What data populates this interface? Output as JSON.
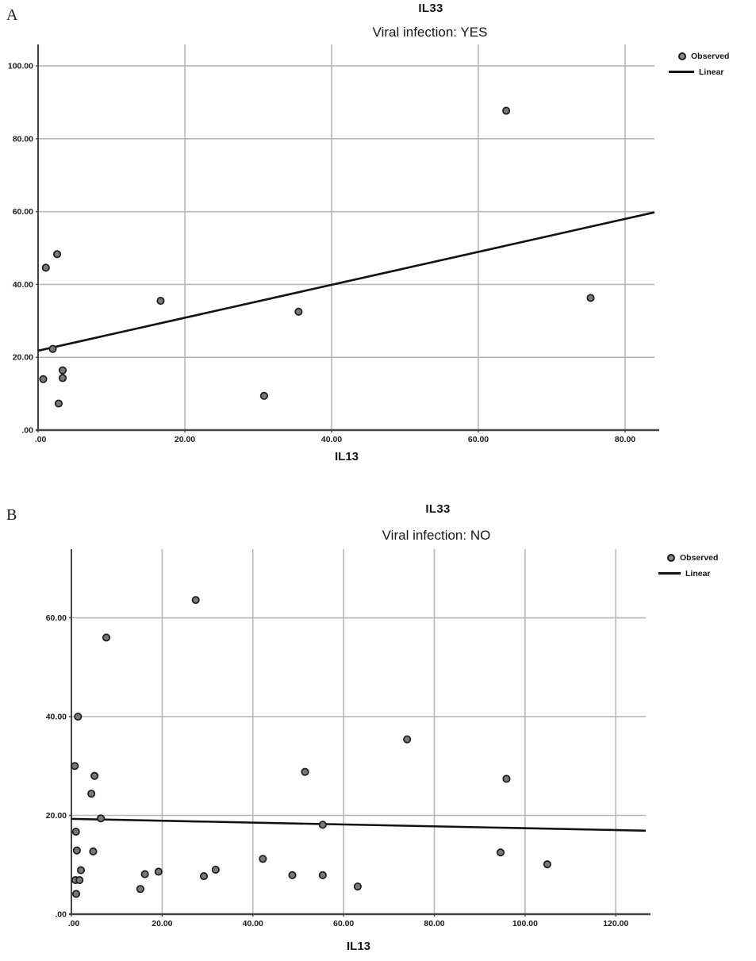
{
  "colors": {
    "background": "#ffffff",
    "point_fill": "#787878",
    "point_stroke": "#1c1c1c",
    "fit_line": "#121212",
    "gridline": "#b8b8b8",
    "axis": "#454545",
    "text": "#1a1a1a"
  },
  "chart_data": [
    {
      "type": "scatter",
      "panel_label": "A",
      "title": "IL33",
      "subtitle": "Viral infection: YES",
      "xlabel": "IL13",
      "ylabel": "",
      "legend": [
        "Observed",
        "Linear"
      ],
      "legend_position": "top-right",
      "grid": true,
      "xlim": [
        0,
        84
      ],
      "ylim": [
        0,
        105.9
      ],
      "x_ticks": [
        0,
        20,
        40,
        60,
        80
      ],
      "x_tick_labels": [
        ".00",
        "20.00",
        "40.00",
        "60.00",
        "80.00"
      ],
      "y_ticks": [
        0,
        20,
        40,
        60,
        80,
        100
      ],
      "y_tick_labels": [
        ".00",
        "20.00",
        "40.00",
        "60.00",
        "80.00",
        "100.00"
      ],
      "points": [
        [
          0.7,
          14.0
        ],
        [
          1.05,
          44.6
        ],
        [
          2.0,
          22.3
        ],
        [
          2.6,
          48.3
        ],
        [
          2.8,
          7.3
        ],
        [
          3.35,
          16.4
        ],
        [
          3.35,
          14.3
        ],
        [
          16.7,
          35.5
        ],
        [
          30.8,
          9.4
        ],
        [
          35.5,
          32.5
        ],
        [
          63.8,
          87.7
        ],
        [
          75.3,
          36.3
        ]
      ],
      "linear_fit": {
        "x": [
          0,
          84
        ],
        "y": [
          21.8,
          59.8
        ]
      }
    },
    {
      "type": "scatter",
      "panel_label": "B",
      "title": "IL33",
      "subtitle": "Viral infection: NO",
      "xlabel": "IL13",
      "ylabel": "",
      "legend": [
        "Observed",
        "Linear"
      ],
      "legend_position": "top-right",
      "grid": true,
      "xlim": [
        0,
        126.6
      ],
      "ylim": [
        0,
        73.9
      ],
      "x_ticks": [
        0,
        20,
        40,
        60,
        80,
        100,
        120
      ],
      "x_tick_labels": [
        ".00",
        "20.00",
        "40.00",
        "60.00",
        "80.00",
        "100.00",
        "120.00"
      ],
      "y_ticks": [
        0,
        20,
        40,
        60
      ],
      "y_tick_labels": [
        ".00",
        "20.00",
        "40.00",
        "60.00"
      ],
      "points": [
        [
          0.75,
          30.0
        ],
        [
          0.9,
          6.9
        ],
        [
          1.0,
          16.7
        ],
        [
          1.05,
          4.1
        ],
        [
          1.2,
          12.9
        ],
        [
          1.45,
          40.0
        ],
        [
          1.8,
          6.9
        ],
        [
          2.1,
          8.9
        ],
        [
          4.4,
          24.4
        ],
        [
          4.8,
          12.7
        ],
        [
          5.1,
          28.0
        ],
        [
          6.5,
          19.4
        ],
        [
          7.7,
          56.0
        ],
        [
          15.2,
          5.1
        ],
        [
          16.2,
          8.1
        ],
        [
          19.2,
          8.6
        ],
        [
          27.4,
          63.6
        ],
        [
          29.2,
          7.7
        ],
        [
          31.8,
          9.0
        ],
        [
          42.2,
          11.2
        ],
        [
          48.7,
          7.9
        ],
        [
          51.5,
          28.8
        ],
        [
          55.4,
          18.1
        ],
        [
          55.4,
          7.9
        ],
        [
          63.1,
          5.6
        ],
        [
          74.0,
          35.4
        ],
        [
          94.6,
          12.5
        ],
        [
          95.9,
          27.4
        ],
        [
          104.9,
          10.1
        ]
      ],
      "linear_fit": {
        "x": [
          0,
          126.6
        ],
        "y": [
          19.3,
          16.9
        ]
      }
    }
  ]
}
